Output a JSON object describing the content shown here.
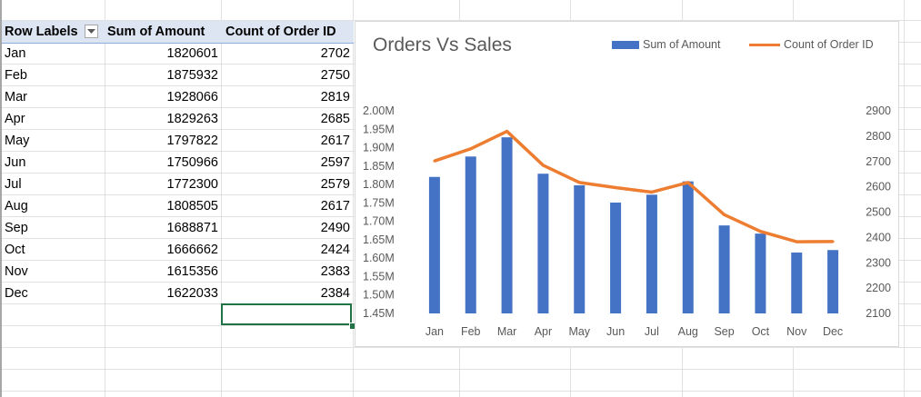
{
  "pivot": {
    "headers": {
      "row_labels": "Row Labels",
      "sum_amount": "Sum of Amount",
      "count_order": "Count of Order ID"
    },
    "rows": [
      {
        "month": "Jan",
        "amount": "1820601",
        "count": "2702"
      },
      {
        "month": "Feb",
        "amount": "1875932",
        "count": "2750"
      },
      {
        "month": "Mar",
        "amount": "1928066",
        "count": "2819"
      },
      {
        "month": "Apr",
        "amount": "1829263",
        "count": "2685"
      },
      {
        "month": "May",
        "amount": "1797822",
        "count": "2617"
      },
      {
        "month": "Jun",
        "amount": "1750966",
        "count": "2597"
      },
      {
        "month": "Jul",
        "amount": "1772300",
        "count": "2579"
      },
      {
        "month": "Aug",
        "amount": "1808505",
        "count": "2617"
      },
      {
        "month": "Sep",
        "amount": "1688871",
        "count": "2490"
      },
      {
        "month": "Oct",
        "amount": "1666662",
        "count": "2424"
      },
      {
        "month": "Nov",
        "amount": "1615356",
        "count": "2383"
      },
      {
        "month": "Dec",
        "amount": "1622033",
        "count": "2384"
      }
    ]
  },
  "colors": {
    "bar": "#4472c4",
    "line": "#ed7d31",
    "header_fill": "#dde4f2",
    "selection": "#217346"
  },
  "icons": {
    "filter": "dropdown-arrow-icon"
  },
  "chart_data": {
    "type": "bar",
    "title": "Orders Vs Sales",
    "categories": [
      "Jan",
      "Feb",
      "Mar",
      "Apr",
      "May",
      "Jun",
      "Jul",
      "Aug",
      "Sep",
      "Oct",
      "Nov",
      "Dec"
    ],
    "series": [
      {
        "name": "Sum of Amount",
        "type": "bar",
        "axis": "primary",
        "values": [
          1820601,
          1875932,
          1928066,
          1829263,
          1797822,
          1750966,
          1772300,
          1808505,
          1688871,
          1666662,
          1615356,
          1622033
        ]
      },
      {
        "name": "Count of Order ID",
        "type": "line",
        "axis": "secondary",
        "values": [
          2702,
          2750,
          2819,
          2685,
          2617,
          2597,
          2579,
          2617,
          2490,
          2424,
          2383,
          2384
        ]
      }
    ],
    "primary_axis": {
      "ylim": [
        1450000,
        2000000
      ],
      "ticks": [
        "1.45M",
        "1.50M",
        "1.55M",
        "1.60M",
        "1.65M",
        "1.70M",
        "1.75M",
        "1.80M",
        "1.85M",
        "1.90M",
        "1.95M",
        "2.00M"
      ]
    },
    "secondary_axis": {
      "ylim": [
        2100,
        2900
      ],
      "ticks": [
        "2100",
        "2200",
        "2300",
        "2400",
        "2500",
        "2600",
        "2700",
        "2800",
        "2900"
      ]
    },
    "legend": "top-right",
    "grid": false
  }
}
